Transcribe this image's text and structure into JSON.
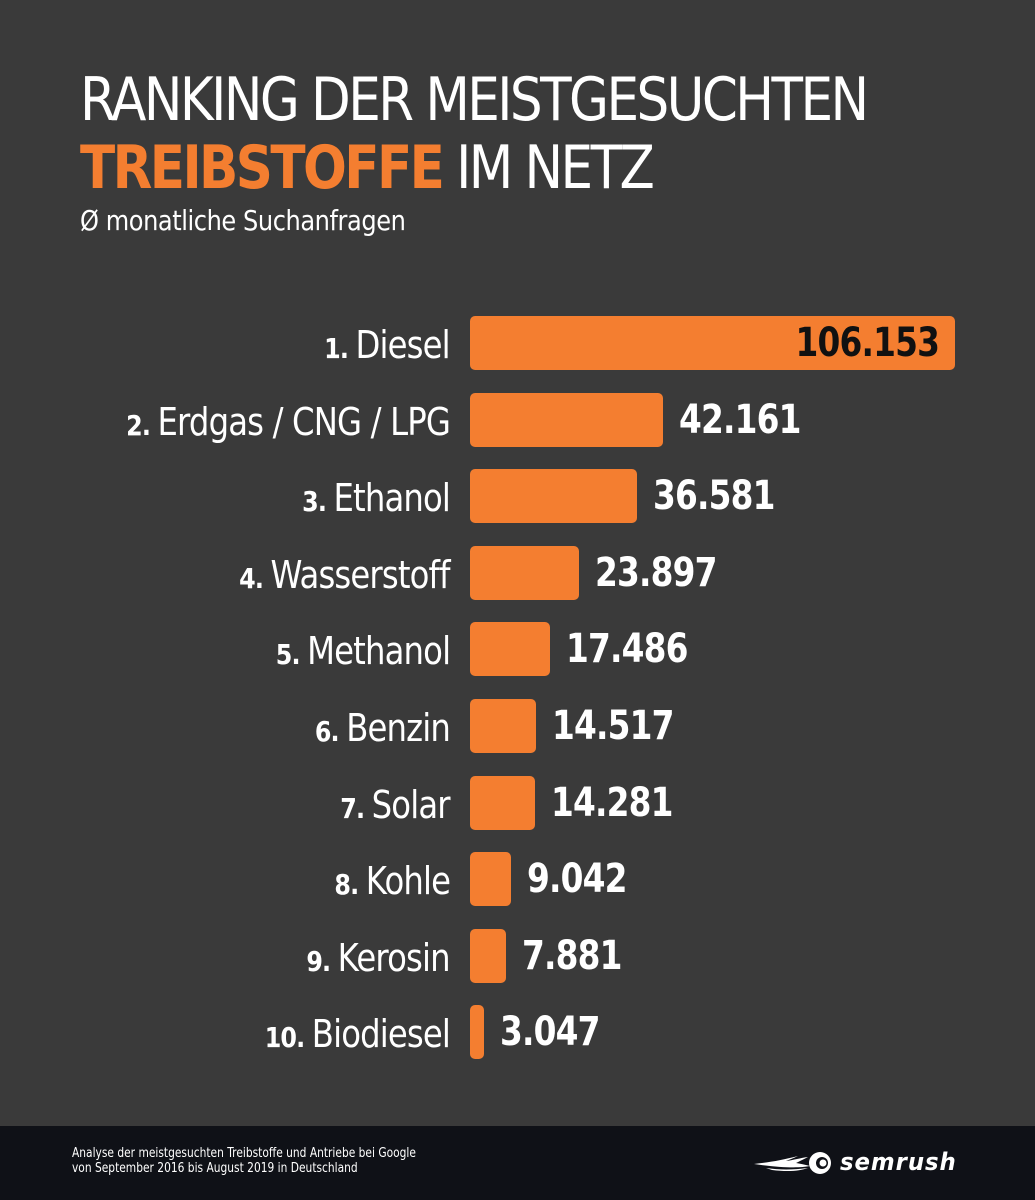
{
  "header": {
    "title_line1": "RANKING DER MEISTGESUCHTEN",
    "title_accent": "TREIBSTOFFE",
    "title_line2_rest": " IM NETZ",
    "subtitle": "Ø monatliche Suchanfragen"
  },
  "colors": {
    "background": "#3a3a3a",
    "accent": "#f47e30",
    "footer": "#0f1117",
    "text": "#ffffff"
  },
  "chart_data": {
    "type": "bar",
    "orientation": "horizontal",
    "title": "RANKING DER MEISTGESUCHTEN TREIBSTOFFE IM NETZ",
    "subtitle": "Ø monatliche Suchanfragen",
    "xlabel": "",
    "ylabel": "",
    "xlim": [
      0,
      106153
    ],
    "grid": false,
    "ranks": [
      "1.",
      "2.",
      "3.",
      "4.",
      "5.",
      "6.",
      "7.",
      "8.",
      "9.",
      "10."
    ],
    "categories": [
      "Diesel",
      "Erdgas / CNG / LPG",
      "Ethanol",
      "Wasserstoff",
      "Methanol",
      "Benzin",
      "Solar",
      "Kohle",
      "Kerosin",
      "Biodiesel"
    ],
    "values": [
      106153,
      42161,
      36581,
      23897,
      17486,
      14517,
      14281,
      9042,
      7881,
      3047
    ],
    "value_labels": [
      "106.153",
      "42.161",
      "36.581",
      "23.897",
      "17.486",
      "14.517",
      "14.281",
      "9.042",
      "7.881",
      "3.047"
    ]
  },
  "footer": {
    "note_line1": "Analyse der meistgesuchten Treibstoffe und Antriebe bei Google",
    "note_line2": "von September 2016 bis August 2019 in Deutschland",
    "logo_text": "semrush",
    "logo_icon": "semrush-fireball-icon"
  }
}
